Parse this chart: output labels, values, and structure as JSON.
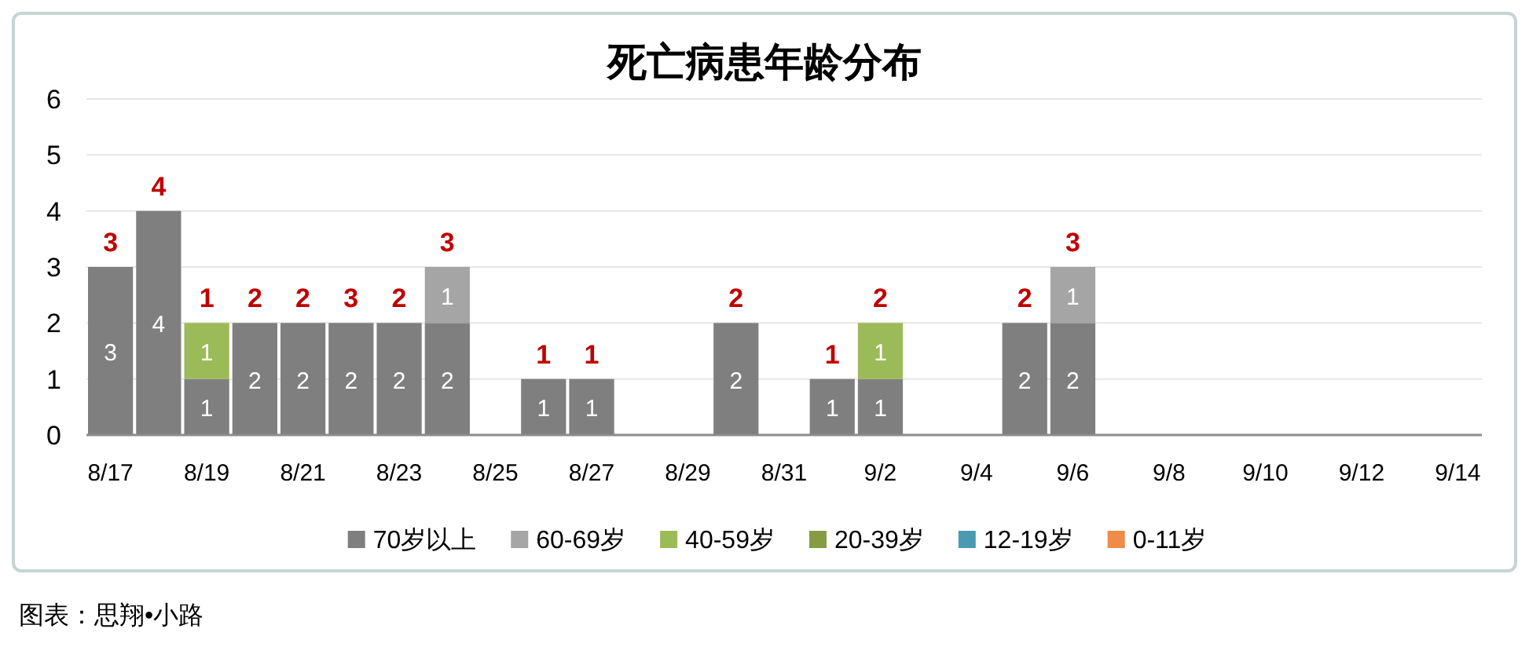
{
  "chart_data": {
    "type": "bar",
    "title": "死亡病患年龄分布",
    "categories": [
      "8/17",
      null,
      "8/19",
      null,
      "8/21",
      null,
      "8/23",
      null,
      "8/25",
      null,
      "8/27",
      null,
      "8/29",
      null,
      "8/31",
      null,
      "9/2",
      null,
      "9/4",
      null,
      "9/6",
      null,
      "9/8",
      null,
      "9/10",
      null,
      "9/12",
      null,
      "9/14"
    ],
    "series": [
      {
        "name": "70岁以上",
        "color": "#7f7f7f",
        "values": [
          3,
          4,
          1,
          2,
          2,
          2,
          2,
          2,
          null,
          1,
          1,
          null,
          null,
          2,
          null,
          1,
          1,
          null,
          null,
          2,
          2,
          null,
          null,
          null,
          null,
          null,
          null,
          null,
          null
        ]
      },
      {
        "name": "60-69岁",
        "color": "#a5a5a5",
        "values": [
          null,
          null,
          null,
          null,
          null,
          null,
          null,
          1,
          null,
          null,
          null,
          null,
          null,
          null,
          null,
          null,
          null,
          null,
          null,
          null,
          1,
          null,
          null,
          null,
          null,
          null,
          null,
          null,
          null
        ]
      },
      {
        "name": "40-59岁",
        "color": "#9bbb59",
        "values": [
          null,
          null,
          1,
          null,
          null,
          null,
          null,
          null,
          null,
          null,
          null,
          null,
          null,
          null,
          null,
          null,
          1,
          null,
          null,
          null,
          null,
          null,
          null,
          null,
          null,
          null,
          null,
          null,
          null
        ]
      },
      {
        "name": "20-39岁",
        "color": "#879b45",
        "values": [
          null,
          null,
          null,
          null,
          null,
          null,
          null,
          null,
          null,
          null,
          null,
          null,
          null,
          null,
          null,
          null,
          null,
          null,
          null,
          null,
          null,
          null,
          null,
          null,
          null,
          null,
          null,
          null,
          null
        ]
      },
      {
        "name": "12-19岁",
        "color": "#4a9bb1",
        "values": [
          null,
          null,
          null,
          null,
          null,
          null,
          null,
          null,
          null,
          null,
          null,
          null,
          null,
          null,
          null,
          null,
          null,
          null,
          null,
          null,
          null,
          null,
          null,
          null,
          null,
          null,
          null,
          null,
          null
        ]
      },
      {
        "name": "0-11岁",
        "color": "#ef8c4a",
        "values": [
          null,
          null,
          null,
          null,
          null,
          null,
          null,
          null,
          null,
          null,
          null,
          null,
          null,
          null,
          null,
          null,
          null,
          null,
          null,
          null,
          null,
          null,
          null,
          null,
          null,
          null,
          null,
          null,
          null
        ]
      }
    ],
    "stacked": true,
    "ylim": [
      0,
      6
    ],
    "yticks": [
      0,
      1,
      2,
      3,
      4,
      5,
      6
    ],
    "grid": "y",
    "legend": "bottom",
    "data_labels": true,
    "totals": [
      "3",
      "4",
      "1",
      "2",
      "2",
      "3",
      "2",
      "3",
      null,
      "1",
      "1",
      null,
      null,
      "2",
      null,
      "1",
      "2",
      null,
      null,
      "2",
      "3",
      null,
      null,
      null,
      null,
      null,
      null,
      null,
      null
    ],
    "annotations": [
      "图表：思翔•小路"
    ]
  }
}
